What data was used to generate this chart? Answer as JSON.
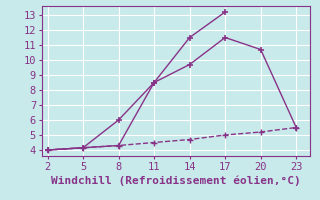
{
  "title": "",
  "xlabel": "Windchill (Refroidissement éolien,°C)",
  "background_color": "#c8eaea",
  "grid_color": "#c0dcdc",
  "line_color": "#883388",
  "x_ticks": [
    2,
    5,
    8,
    11,
    14,
    17,
    20,
    23
  ],
  "y_ticks": [
    4,
    5,
    6,
    7,
    8,
    9,
    10,
    11,
    12,
    13
  ],
  "ylim": [
    3.6,
    13.6
  ],
  "xlim": [
    1.5,
    24.2
  ],
  "line1_x": [
    2,
    5,
    8,
    11,
    14,
    17
  ],
  "line1_y": [
    4.0,
    4.15,
    4.3,
    8.5,
    11.5,
    13.2
  ],
  "line2_x": [
    2,
    5,
    8,
    11,
    14,
    17,
    20,
    23
  ],
  "line2_y": [
    4.0,
    4.15,
    6.0,
    8.5,
    9.7,
    11.5,
    10.7,
    5.5
  ],
  "line3_x": [
    2,
    5,
    8,
    11,
    14,
    17,
    20,
    23
  ],
  "line3_y": [
    4.0,
    4.15,
    4.3,
    4.5,
    4.7,
    5.0,
    5.2,
    5.5
  ],
  "xlabel_fontsize": 8,
  "tick_fontsize": 7.5
}
